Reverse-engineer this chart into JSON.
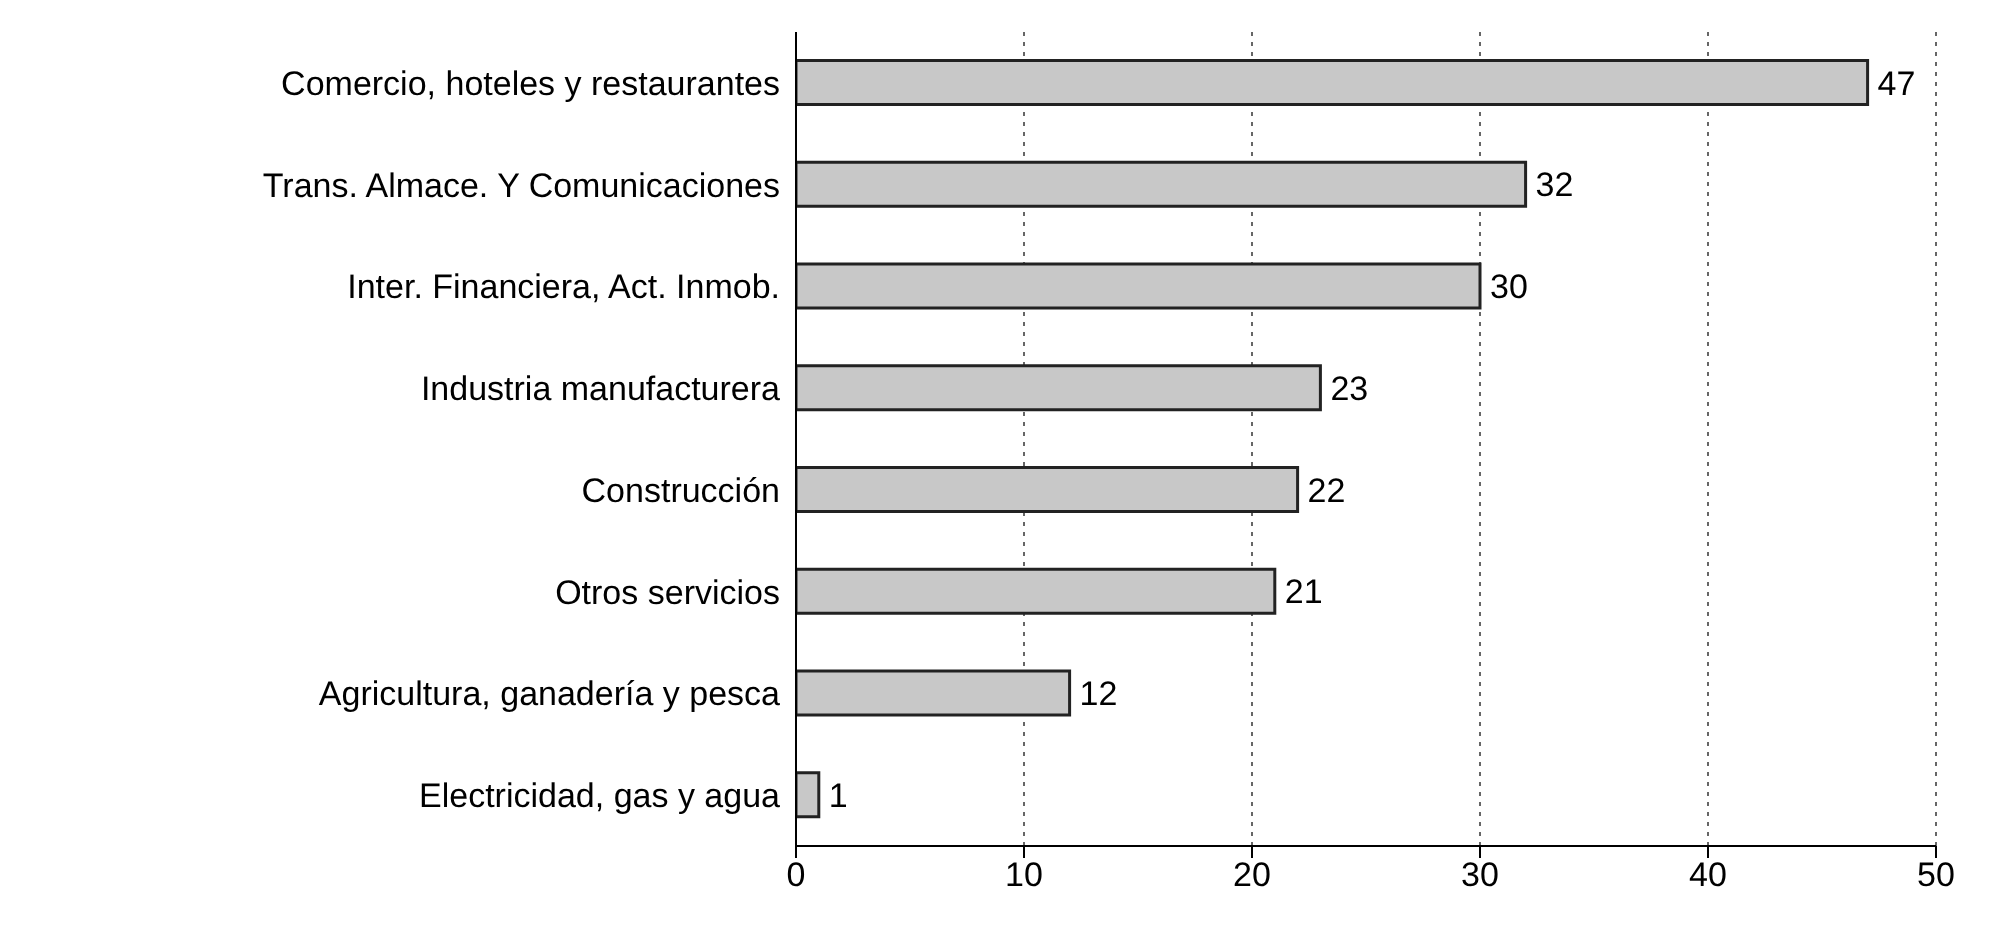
{
  "chart_data": {
    "type": "bar",
    "orientation": "horizontal",
    "categories": [
      "Comercio, hoteles y restaurantes",
      "Trans. Almace. Y Comunicaciones",
      "Inter. Financiera, Act. Inmob.",
      "Industria manufacturera",
      "Construcción",
      "Otros servicios",
      "Agricultura, ganadería y pesca",
      "Electricidad, gas y agua"
    ],
    "values": [
      47,
      32,
      30,
      23,
      22,
      21,
      12,
      1
    ],
    "color": "#c8c8c8",
    "xlim": [
      0,
      50
    ],
    "xticks": [
      0,
      10,
      20,
      30,
      40,
      50
    ],
    "grid": "x",
    "data_labels": true
  }
}
